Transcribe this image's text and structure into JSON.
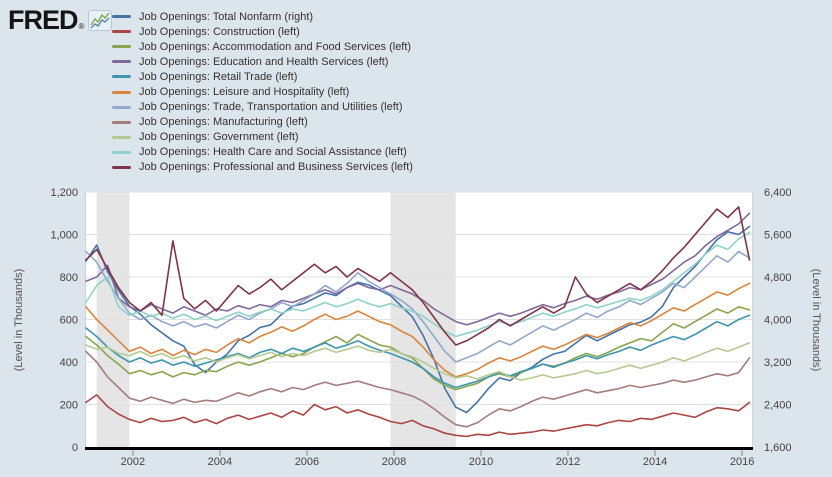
{
  "brand": {
    "logo_text": "FRED",
    "registered_mark": "®"
  },
  "colors": {
    "background": "#dce4ec",
    "plot_background": "#ffffff",
    "gridline": "#e0e0e0",
    "plot_border": "#ccd3da",
    "recession_band": "#e5e5e5",
    "axis_line": "#000000",
    "tick_mark": "#8b8b8b",
    "tick_label": "#444444",
    "axis_title": "#555555",
    "legend_text": "#333333"
  },
  "chart_data": {
    "type": "line",
    "grid": "horizontal",
    "xlim": [
      2000.9,
      2016.25
    ],
    "x_ticks": [
      2002,
      2004,
      2006,
      2008,
      2010,
      2012,
      2014,
      2016
    ],
    "x_tick_labels": [
      "2002",
      "2004",
      "2006",
      "2008",
      "2010",
      "2012",
      "2014",
      "2016"
    ],
    "left_axis": {
      "title": "(Level in Thousands)",
      "lim": [
        0,
        1200
      ],
      "ticks": [
        0,
        200,
        400,
        600,
        800,
        1000,
        1200
      ],
      "tick_labels": [
        "0",
        "200",
        "400",
        "600",
        "800",
        "1,000",
        "1,200"
      ]
    },
    "right_axis": {
      "title": "(Level in Thousands)",
      "lim": [
        1600,
        6400
      ],
      "ticks": [
        1600,
        2400,
        3200,
        4000,
        4800,
        5600,
        6400
      ],
      "tick_labels": [
        "1,600",
        "2,400",
        "3,200",
        "4,000",
        "4,800",
        "5,600",
        "6,400"
      ]
    },
    "recession_bands": [
      {
        "start": 2001.17,
        "end": 2001.92
      },
      {
        "start": 2007.92,
        "end": 2009.42
      }
    ],
    "x_years": [
      2000.92,
      2001.17,
      2001.42,
      2001.67,
      2001.92,
      2002.17,
      2002.42,
      2002.67,
      2002.92,
      2003.17,
      2003.42,
      2003.67,
      2003.92,
      2004.17,
      2004.42,
      2004.67,
      2004.92,
      2005.17,
      2005.42,
      2005.67,
      2005.92,
      2006.17,
      2006.42,
      2006.67,
      2006.92,
      2007.17,
      2007.42,
      2007.67,
      2007.92,
      2008.17,
      2008.42,
      2008.67,
      2008.92,
      2009.17,
      2009.42,
      2009.67,
      2009.92,
      2010.17,
      2010.42,
      2010.67,
      2010.92,
      2011.17,
      2011.42,
      2011.67,
      2011.92,
      2012.17,
      2012.42,
      2012.67,
      2012.92,
      2013.17,
      2013.42,
      2013.67,
      2013.92,
      2014.17,
      2014.42,
      2014.67,
      2014.92,
      2015.17,
      2015.42,
      2015.67,
      2015.92,
      2016.17
    ],
    "series": [
      {
        "label": "Job Openings: Total Nonfarm (right)",
        "name": "total-nonfarm",
        "axis": "right",
        "color": "#4572a7",
        "values": [
          5100,
          5400,
          4900,
          4550,
          4250,
          4100,
          3900,
          3750,
          3600,
          3500,
          3150,
          3000,
          3200,
          3350,
          3600,
          3700,
          3850,
          3900,
          4100,
          4250,
          4300,
          4400,
          4500,
          4450,
          4600,
          4700,
          4650,
          4550,
          4450,
          4250,
          4050,
          3700,
          3250,
          2700,
          2350,
          2250,
          2450,
          2700,
          2900,
          2850,
          3000,
          3100,
          3250,
          3350,
          3400,
          3550,
          3700,
          3600,
          3700,
          3800,
          3900,
          3950,
          4050,
          4250,
          4600,
          4800,
          5000,
          5250,
          5500,
          5650,
          5600,
          5750
        ]
      },
      {
        "label": "Job Openings: Construction (left)",
        "name": "construction",
        "axis": "left",
        "color": "#aa4643",
        "values": [
          210,
          245,
          190,
          155,
          130,
          115,
          135,
          120,
          125,
          140,
          115,
          130,
          110,
          135,
          150,
          130,
          145,
          160,
          140,
          170,
          150,
          200,
          175,
          190,
          160,
          175,
          155,
          140,
          120,
          110,
          125,
          100,
          85,
          65,
          55,
          50,
          60,
          55,
          70,
          60,
          65,
          70,
          80,
          75,
          85,
          95,
          105,
          100,
          115,
          125,
          120,
          135,
          130,
          145,
          160,
          150,
          140,
          165,
          185,
          180,
          170,
          210
        ]
      },
      {
        "label": "Job Openings: Accommodation and Food Services (left)",
        "name": "accommodation-food-services",
        "axis": "left",
        "color": "#89a54e",
        "values": [
          520,
          480,
          430,
          390,
          345,
          360,
          340,
          355,
          330,
          350,
          340,
          360,
          355,
          380,
          400,
          385,
          400,
          420,
          440,
          425,
          440,
          470,
          495,
          520,
          490,
          530,
          505,
          480,
          470,
          440,
          420,
          370,
          320,
          290,
          270,
          285,
          300,
          330,
          345,
          330,
          350,
          370,
          390,
          380,
          395,
          420,
          440,
          425,
          445,
          470,
          490,
          510,
          500,
          540,
          580,
          560,
          590,
          620,
          650,
          630,
          660,
          645
        ]
      },
      {
        "label": "Job Openings: Education and Health Services (left)",
        "name": "education-health-services",
        "axis": "left",
        "color": "#80699b",
        "values": [
          780,
          800,
          855,
          700,
          660,
          640,
          670,
          650,
          630,
          660,
          640,
          620,
          650,
          640,
          665,
          650,
          670,
          660,
          690,
          680,
          700,
          720,
          740,
          720,
          750,
          770,
          750,
          740,
          760,
          740,
          720,
          690,
          650,
          620,
          590,
          575,
          590,
          610,
          630,
          615,
          630,
          650,
          670,
          655,
          675,
          690,
          710,
          695,
          715,
          730,
          750,
          740,
          765,
          790,
          830,
          870,
          900,
          950,
          990,
          1020,
          1050,
          1100
        ]
      },
      {
        "label": "Job Openings: Retail Trade (left)",
        "name": "retail-trade",
        "axis": "left",
        "color": "#3d96ae",
        "values": [
          560,
          520,
          470,
          430,
          400,
          420,
          395,
          410,
          385,
          400,
          380,
          395,
          410,
          425,
          440,
          420,
          445,
          460,
          440,
          465,
          450,
          470,
          490,
          465,
          480,
          500,
          475,
          455,
          440,
          420,
          400,
          370,
          330,
          300,
          280,
          295,
          310,
          330,
          350,
          335,
          355,
          370,
          390,
          375,
          395,
          410,
          430,
          415,
          435,
          450,
          470,
          455,
          480,
          500,
          520,
          505,
          530,
          560,
          590,
          570,
          600,
          620
        ]
      },
      {
        "label": "Job Openings: Leisure and Hospitality (left)",
        "name": "leisure-hospitality",
        "axis": "left",
        "color": "#db843d",
        "values": [
          660,
          600,
          550,
          500,
          450,
          470,
          440,
          460,
          430,
          455,
          435,
          460,
          445,
          480,
          510,
          490,
          520,
          540,
          565,
          545,
          570,
          600,
          625,
          600,
          615,
          640,
          615,
          590,
          575,
          545,
          520,
          470,
          410,
          360,
          330,
          345,
          365,
          395,
          420,
          405,
          425,
          450,
          475,
          460,
          480,
          505,
          530,
          515,
          535,
          560,
          585,
          570,
          595,
          625,
          655,
          640,
          670,
          700,
          730,
          715,
          745,
          770
        ]
      },
      {
        "label": "Job Openings: Trade, Transportation and Utilities (left)",
        "name": "trade-transportation-utilities",
        "axis": "left",
        "color": "#92a8cd",
        "values": [
          920,
          870,
          780,
          700,
          630,
          600,
          620,
          590,
          570,
          590,
          565,
          580,
          560,
          590,
          620,
          600,
          630,
          650,
          680,
          660,
          690,
          720,
          760,
          730,
          770,
          820,
          780,
          750,
          720,
          690,
          650,
          590,
          520,
          450,
          400,
          420,
          440,
          470,
          500,
          480,
          510,
          540,
          570,
          550,
          575,
          600,
          630,
          610,
          640,
          660,
          690,
          670,
          700,
          730,
          770,
          750,
          800,
          850,
          900,
          870,
          920,
          890
        ]
      },
      {
        "label": "Job Openings: Manufacturing (left)",
        "name": "manufacturing",
        "axis": "left",
        "color": "#a47d7c",
        "values": [
          450,
          400,
          330,
          280,
          230,
          215,
          235,
          220,
          205,
          225,
          210,
          220,
          215,
          235,
          255,
          240,
          260,
          275,
          260,
          280,
          270,
          290,
          305,
          290,
          300,
          310,
          295,
          280,
          270,
          255,
          240,
          215,
          180,
          140,
          105,
          95,
          115,
          150,
          180,
          170,
          190,
          215,
          235,
          225,
          240,
          255,
          270,
          255,
          265,
          275,
          290,
          280,
          290,
          300,
          315,
          305,
          315,
          330,
          345,
          335,
          350,
          420
        ]
      },
      {
        "label": "Job Openings: Government (left)",
        "name": "government",
        "axis": "left",
        "color": "#b5ca92",
        "values": [
          480,
          460,
          470,
          440,
          430,
          450,
          425,
          440,
          415,
          430,
          405,
          420,
          400,
          420,
          435,
          415,
          430,
          445,
          425,
          440,
          430,
          450,
          465,
          445,
          460,
          475,
          455,
          445,
          460,
          440,
          425,
          400,
          370,
          345,
          325,
          335,
          320,
          340,
          355,
          330,
          315,
          325,
          340,
          325,
          335,
          345,
          360,
          345,
          355,
          370,
          385,
          370,
          385,
          400,
          420,
          405,
          425,
          445,
          465,
          450,
          470,
          490
        ]
      },
      {
        "label": "Job Openings: Health Care and Social Assistance (left)",
        "name": "health-care-social-assistance",
        "axis": "left",
        "color": "#8dd3c7",
        "values": [
          680,
          760,
          800,
          660,
          620,
          640,
          615,
          630,
          605,
          625,
          600,
          615,
          595,
          615,
          635,
          615,
          635,
          650,
          630,
          650,
          640,
          660,
          680,
          660,
          675,
          695,
          675,
          660,
          675,
          655,
          640,
          615,
          580,
          545,
          520,
          535,
          550,
          570,
          590,
          575,
          590,
          610,
          630,
          615,
          635,
          650,
          670,
          655,
          670,
          685,
          700,
          690,
          710,
          740,
          780,
          820,
          860,
          910,
          950,
          930,
          980,
          1010
        ]
      },
      {
        "label": "Job Openings: Professional and Business Services (left)",
        "name": "professional-business-services",
        "axis": "left",
        "color": "#7f3448",
        "values": [
          880,
          930,
          840,
          750,
          680,
          640,
          680,
          620,
          970,
          700,
          650,
          690,
          640,
          700,
          760,
          720,
          750,
          790,
          740,
          780,
          820,
          860,
          820,
          850,
          800,
          840,
          810,
          780,
          820,
          780,
          740,
          680,
          610,
          540,
          480,
          500,
          530,
          560,
          600,
          570,
          600,
          630,
          660,
          630,
          660,
          800,
          720,
          680,
          710,
          740,
          770,
          740,
          780,
          830,
          890,
          940,
          1000,
          1060,
          1120,
          1080,
          1130,
          880
        ]
      }
    ]
  }
}
